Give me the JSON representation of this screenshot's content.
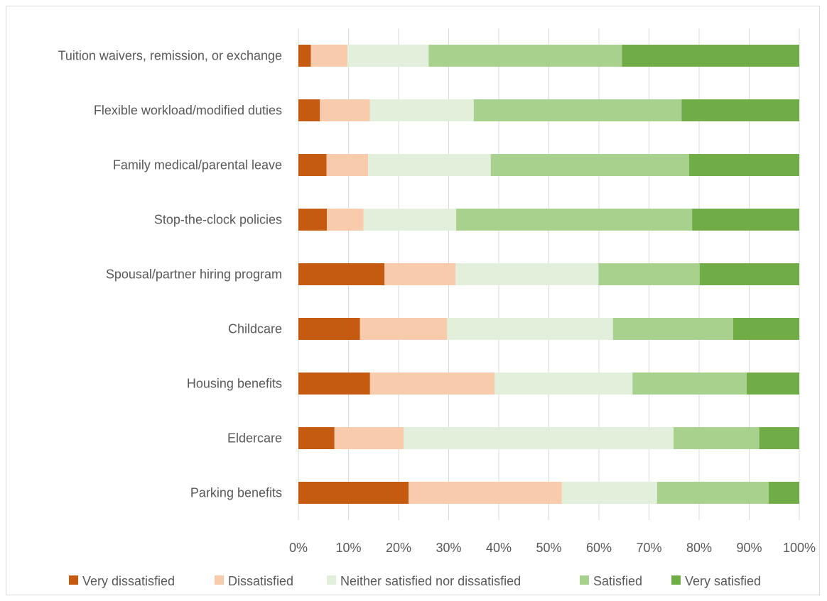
{
  "chart_data": {
    "type": "bar",
    "orientation": "horizontal",
    "stacked": "percent",
    "title": "",
    "xlabel": "",
    "ylabel": "",
    "xlim": [
      0,
      100
    ],
    "x_ticks": [
      "0%",
      "10%",
      "20%",
      "30%",
      "40%",
      "50%",
      "60%",
      "70%",
      "80%",
      "90%",
      "100%"
    ],
    "grid": "vertical",
    "legend_position": "bottom",
    "categories": [
      "Tuition waivers, remission, or exchange",
      "Flexible workload/modified duties",
      "Family medical/parental leave",
      "Stop-the-clock policies",
      "Spousal/partner hiring program",
      "Childcare",
      "Housing benefits",
      "Eldercare",
      "Parking benefits"
    ],
    "series": [
      {
        "name": "Very dissatisfied",
        "color": "#c55a11",
        "values": [
          2.5,
          4.3,
          5.6,
          5.7,
          17.2,
          12.3,
          14.3,
          7.2,
          22.0
        ]
      },
      {
        "name": "Dissatisfied",
        "color": "#f8cbad",
        "values": [
          7.3,
          10.0,
          8.3,
          7.3,
          14.2,
          17.4,
          24.9,
          13.8,
          30.6
        ]
      },
      {
        "name": "Neither satisfied nor dissatisfied",
        "color": "#e2efda",
        "values": [
          16.2,
          20.7,
          24.5,
          18.5,
          28.5,
          33.1,
          27.5,
          53.9,
          19.0
        ]
      },
      {
        "name": "Satisfied",
        "color": "#a9d18e",
        "values": [
          38.6,
          41.5,
          39.6,
          47.1,
          20.2,
          24.0,
          22.8,
          17.1,
          22.3
        ]
      },
      {
        "name": "Very satisfied",
        "color": "#70ad47",
        "values": [
          35.4,
          23.5,
          22.0,
          21.4,
          19.9,
          13.2,
          10.5,
          8.0,
          6.1
        ]
      }
    ]
  }
}
